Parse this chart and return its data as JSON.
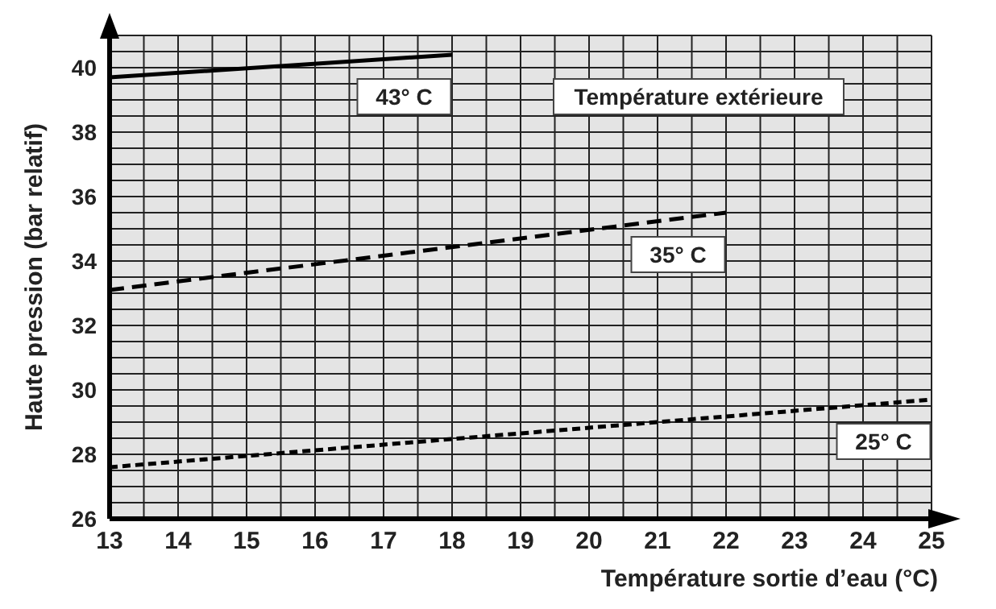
{
  "chart_data": {
    "type": "line",
    "xlabel": "Température sortie d’eau (°C)",
    "ylabel": "Haute pression  (bar relatif)",
    "legend_title": "Température extérieure",
    "xlim": [
      13,
      25
    ],
    "xticks": [
      13,
      14,
      15,
      16,
      17,
      18,
      19,
      20,
      21,
      22,
      23,
      24,
      25
    ],
    "ylim": [
      26,
      41
    ],
    "yticks": [
      26,
      28,
      30,
      32,
      34,
      36,
      38,
      40
    ],
    "grid": true,
    "marker": "none",
    "series": [
      {
        "name": "43° C",
        "color": "#000000",
        "line_style": "solid",
        "x": [
          13,
          18
        ],
        "values": [
          39.7,
          40.4
        ]
      },
      {
        "name": "35° C",
        "color": "#000000",
        "line_style": "dashed",
        "x": [
          13,
          22
        ],
        "values": [
          33.1,
          35.5
        ]
      },
      {
        "name": "25° C",
        "color": "#000000",
        "line_style": "dotted",
        "x": [
          13,
          25
        ],
        "values": [
          27.6,
          29.7
        ]
      }
    ]
  }
}
